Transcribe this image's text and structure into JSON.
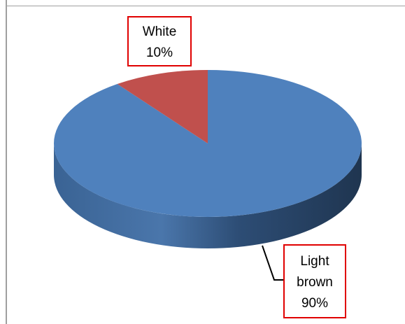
{
  "chart_data": {
    "type": "pie",
    "style": "3d",
    "title": "",
    "slices": [
      {
        "name": "Light brown",
        "value": 90,
        "label_lines": [
          "Light",
          "brown",
          "90%"
        ],
        "color": "#4f81bd"
      },
      {
        "name": "White",
        "value": 10,
        "label_lines": [
          "White",
          "10%"
        ],
        "color": "#c0504d"
      }
    ],
    "label_border_color": "#e00000"
  }
}
